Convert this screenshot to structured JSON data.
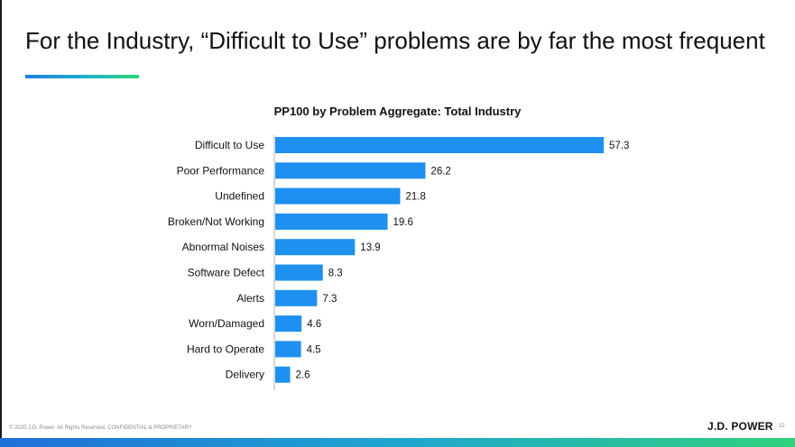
{
  "slide": {
    "title": "For the Industry, “Difficult to Use” problems are by far the most frequent",
    "footer": "© 2020 J.D. Power. All Rights Reserved. CONFIDENTIAL & PROPRIETARY",
    "brand": "J.D. POWER",
    "page_number": "22"
  },
  "colors": {
    "bar": "#1e90f0",
    "axis": "#b0b0b0"
  },
  "chart_data": {
    "type": "bar",
    "orientation": "horizontal",
    "title": "PP100 by Problem Aggregate: Total Industry",
    "xlabel": "",
    "ylabel": "",
    "xlim": [
      0,
      60
    ],
    "grid": false,
    "categories": [
      "Difficult to Use",
      "Poor Performance",
      "Undefined",
      "Broken/Not Working",
      "Abnormal Noises",
      "Software Defect",
      "Alerts",
      "Worn/Damaged",
      "Hard to Operate",
      "Delivery"
    ],
    "values": [
      57.3,
      26.2,
      21.8,
      19.6,
      13.9,
      8.3,
      7.3,
      4.6,
      4.5,
      2.6
    ],
    "data_labels": [
      "57.3",
      "26.2",
      "21.8",
      "19.6",
      "13.9",
      "8.3",
      "7.3",
      "4.6",
      "4.5",
      "2.6"
    ]
  }
}
